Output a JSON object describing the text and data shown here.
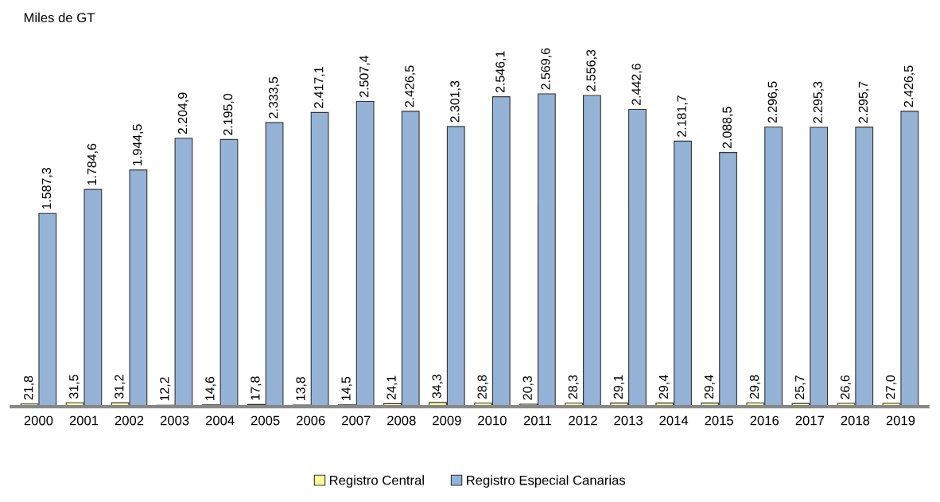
{
  "chart_data": {
    "type": "bar",
    "annotations": [
      "Miles de GT"
    ],
    "categories": [
      "2000",
      "2001",
      "2002",
      "2003",
      "2004",
      "2005",
      "2006",
      "2007",
      "2008",
      "2009",
      "2010",
      "2011",
      "2012",
      "2013",
      "2014",
      "2015",
      "2016",
      "2017",
      "2018",
      "2019"
    ],
    "series": [
      {
        "name": "Registro Central",
        "color": "#ffff99",
        "values": [
          21.8,
          31.5,
          31.2,
          12.2,
          14.6,
          17.8,
          13.8,
          14.5,
          24.1,
          34.3,
          28.8,
          20.3,
          28.3,
          29.1,
          29.4,
          29.4,
          29.8,
          25.7,
          26.6,
          27.0
        ],
        "value_labels": [
          "21,8",
          "31,5",
          "31,2",
          "12,2",
          "14,6",
          "17,8",
          "13,8",
          "14,5",
          "24,1",
          "34,3",
          "28,8",
          "20,3",
          "28,3",
          "29,1",
          "29,4",
          "29,4",
          "29,8",
          "25,7",
          "26,6",
          "27,0"
        ]
      },
      {
        "name": "Registro Especial Canarias",
        "color": "#95b3d7",
        "values": [
          1587.3,
          1784.6,
          1944.5,
          2204.9,
          2195.0,
          2333.5,
          2417.1,
          2507.4,
          2426.5,
          2301.3,
          2546.1,
          2569.6,
          2556.3,
          2442.6,
          2181.7,
          2088.5,
          2296.5,
          2295.3,
          2295.7,
          2426.5
        ],
        "value_labels": [
          "1.587,3",
          "1.784,6",
          "1.944,5",
          "2.204,9",
          "2.195,0",
          "2.333,5",
          "2.417,1",
          "2.507,4",
          "2.426,5",
          "2.301,3",
          "2.546,1",
          "2.569,6",
          "2.556,3",
          "2.442,6",
          "2.181,7",
          "2.088,5",
          "2.296,5",
          "2.295,3",
          "2.295,7",
          "2.426,5"
        ]
      }
    ],
    "legend": "bottom",
    "grid": false
  }
}
